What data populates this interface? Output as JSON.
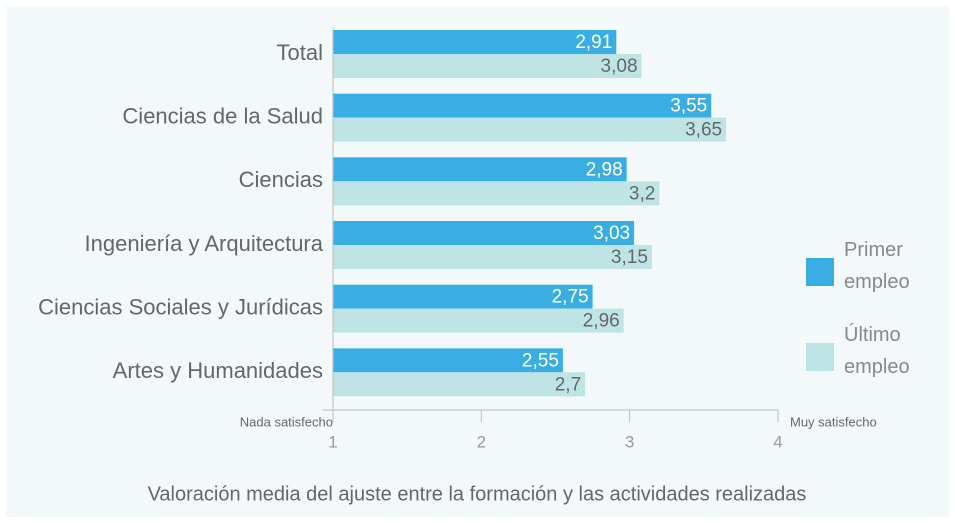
{
  "chart_data": {
    "type": "barh",
    "categories": [
      "Total",
      "Ciencias de la Salud",
      "Ciencias",
      "Ingeniería y Arquitectura",
      "Ciencias Sociales y Jurídicas",
      "Artes y Humanidades"
    ],
    "series": [
      {
        "name": "Primer empleo",
        "color": "#3aaee3",
        "values": [
          2.91,
          3.55,
          2.98,
          3.03,
          2.75,
          2.55
        ],
        "value_labels": [
          "2,91",
          "3,55",
          "2,98",
          "3,03",
          "2,75",
          "2,55"
        ]
      },
      {
        "name": "Último empleo",
        "color": "#bfe4e6",
        "values": [
          3.08,
          3.65,
          3.2,
          3.15,
          2.96,
          2.7
        ],
        "value_labels": [
          "3,08",
          "3,65",
          "3,2",
          "3,15",
          "2,96",
          "2,7"
        ]
      }
    ],
    "xlim": [
      1,
      4
    ],
    "xticks": [
      1,
      2,
      3,
      4
    ],
    "x_min_label": "Nada satisfecho",
    "x_max_label": "Muy satisfecho",
    "xlabel": "Valoración media del ajuste entre la formación y las actividades realizadas",
    "legend": "right"
  }
}
